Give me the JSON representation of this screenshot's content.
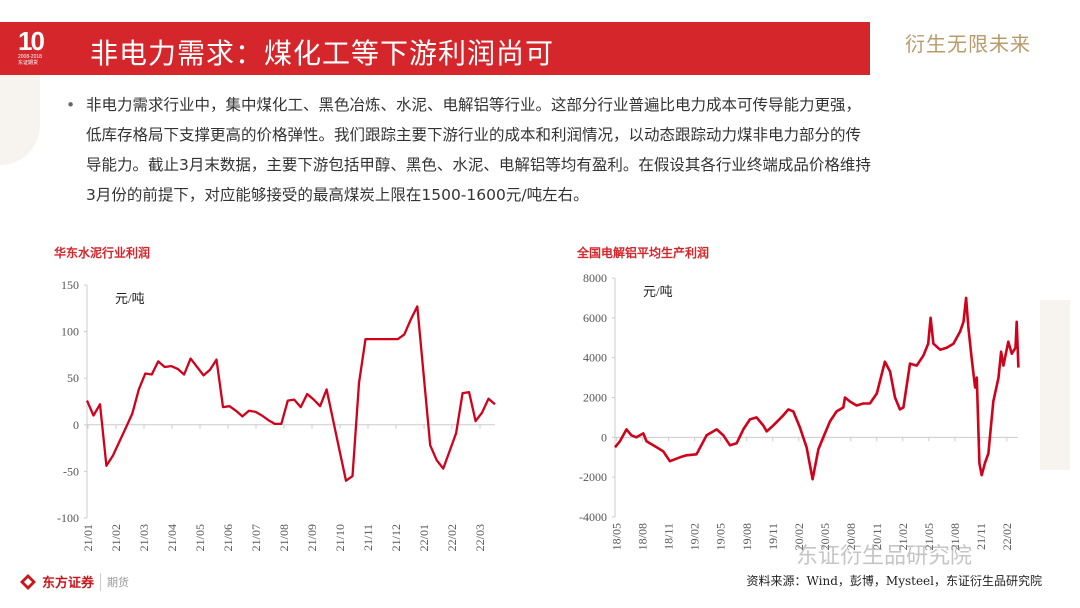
{
  "header": {
    "logo_text": "10",
    "logo_sub": "2008-2018 东证期货",
    "title": "非电力需求：煤化工等下游利润尚可",
    "slogan": "衍生无限未来"
  },
  "bullet": {
    "lines": [
      "非电力需求行业中，集中煤化工、黑色冶炼、水泥、电解铝等行业。这部分行业普遍比电力成本可传导能力更强，",
      "低库存格局下支撑更高的价格弹性。我们跟踪主要下游行业的成本和利润情况，以动态跟踪动力煤非电力部分的传",
      "导能力。截止3月末数据，主要下游包括甲醇、黑色、水泥、电解铝等均有盈利。在假设其各行业终端成品价格维持",
      "3月份的前提下，对应能够接受的最高煤炭上限在1500-1600元/吨左右。"
    ]
  },
  "chart_data": [
    {
      "type": "line",
      "title": "华东水泥行业利润",
      "unit_label": "元/吨",
      "ylim": [
        -100,
        150
      ],
      "yticks": [
        "-100",
        "-50",
        "0",
        "50",
        "100",
        "150"
      ],
      "xticks": [
        "21/01",
        "21/02",
        "21/03",
        "21/04",
        "21/05",
        "21/06",
        "21/07",
        "21/08",
        "21/09",
        "21/10",
        "21/11",
        "21/12",
        "22/01",
        "22/02",
        "22/03"
      ],
      "color": "#d0021b",
      "values": [
        26,
        10,
        22,
        -44,
        -33,
        -18,
        -3,
        12,
        38,
        55,
        54,
        68,
        62,
        63,
        60,
        54,
        71,
        62,
        53,
        59,
        70,
        19,
        20,
        15,
        9,
        15,
        14,
        10,
        5,
        1,
        1,
        26,
        27,
        19,
        33,
        27,
        20,
        38,
        5,
        -28,
        -60,
        -55,
        45,
        92,
        92,
        92,
        92,
        92,
        92,
        97,
        113,
        127,
        52,
        -22,
        -38,
        -47,
        -28,
        -9,
        34,
        35,
        4,
        13,
        28,
        22
      ]
    },
    {
      "type": "line",
      "title": "全国电解铝平均生产利润",
      "unit_label": "元/吨",
      "ylim": [
        -4000,
        8000
      ],
      "yticks": [
        "-4000",
        "-2000",
        "0",
        "2000",
        "4000",
        "6000",
        "8000"
      ],
      "xticks": [
        "18/05",
        "18/08",
        "18/11",
        "19/02",
        "19/05",
        "19/08",
        "19/11",
        "20/02",
        "20/05",
        "20/08",
        "20/11",
        "21/02",
        "21/05",
        "21/08",
        "21/11",
        "22/02"
      ],
      "color": "#d0021b",
      "points": [
        [
          "2018-04-25",
          -500
        ],
        [
          "2018-05-12",
          -200
        ],
        [
          "2018-06-05",
          400
        ],
        [
          "2018-06-22",
          100
        ],
        [
          "2018-07-09",
          0
        ],
        [
          "2018-08-03",
          200
        ],
        [
          "2018-08-14",
          -200
        ],
        [
          "2018-09-19",
          -500
        ],
        [
          "2018-10-12",
          -700
        ],
        [
          "2018-11-05",
          -1200
        ],
        [
          "2018-12-10",
          -1000
        ],
        [
          "2019-01-03",
          -900
        ],
        [
          "2019-02-07",
          -850
        ],
        [
          "2019-03-12",
          100
        ],
        [
          "2019-04-17",
          400
        ],
        [
          "2019-05-10",
          100
        ],
        [
          "2019-06-03",
          -400
        ],
        [
          "2019-06-26",
          -300
        ],
        [
          "2019-07-19",
          400
        ],
        [
          "2019-08-12",
          900
        ],
        [
          "2019-09-05",
          1000
        ],
        [
          "2019-09-28",
          600
        ],
        [
          "2019-10-10",
          300
        ],
        [
          "2019-11-03",
          600
        ],
        [
          "2019-12-07",
          1100
        ],
        [
          "2019-12-25",
          1400
        ],
        [
          "2020-01-12",
          1300
        ],
        [
          "2020-02-05",
          500
        ],
        [
          "2020-02-28",
          -500
        ],
        [
          "2020-03-19",
          -2100
        ],
        [
          "2020-04-09",
          -600
        ],
        [
          "2020-04-26",
          0
        ],
        [
          "2020-05-19",
          800
        ],
        [
          "2020-06-12",
          1300
        ],
        [
          "2020-07-05",
          1500
        ],
        [
          "2020-07-11",
          2000
        ],
        [
          "2020-07-28",
          1800
        ],
        [
          "2020-08-21",
          1600
        ],
        [
          "2020-09-14",
          1700
        ],
        [
          "2020-10-07",
          1700
        ],
        [
          "2020-11-01",
          2200
        ],
        [
          "2020-11-29",
          3800
        ],
        [
          "2020-12-17",
          3300
        ],
        [
          "2021-01-04",
          2000
        ],
        [
          "2021-01-21",
          1400
        ],
        [
          "2021-02-03",
          1500
        ],
        [
          "2021-02-26",
          3700
        ],
        [
          "2021-03-19",
          3600
        ],
        [
          "2021-04-12",
          4100
        ],
        [
          "2021-04-29",
          4700
        ],
        [
          "2021-05-07",
          6000
        ],
        [
          "2021-05-17",
          4700
        ],
        [
          "2021-06-10",
          4400
        ],
        [
          "2021-07-03",
          4500
        ],
        [
          "2021-07-26",
          4700
        ],
        [
          "2021-08-19",
          5300
        ],
        [
          "2021-09-01",
          5800
        ],
        [
          "2021-09-10",
          7000
        ],
        [
          "2021-09-18",
          5500
        ],
        [
          "2021-09-29",
          4000
        ],
        [
          "2021-10-11",
          2500
        ],
        [
          "2021-10-17",
          3000
        ],
        [
          "2021-10-26",
          -1300
        ],
        [
          "2021-11-04",
          -1900
        ],
        [
          "2021-11-15",
          -1300
        ],
        [
          "2021-11-27",
          -800
        ],
        [
          "2021-12-14",
          1800
        ],
        [
          "2022-01-02",
          3000
        ],
        [
          "2022-01-11",
          4300
        ],
        [
          "2022-01-19",
          3600
        ],
        [
          "2022-02-06",
          4800
        ],
        [
          "2022-02-18",
          4200
        ],
        [
          "2022-03-01",
          4500
        ],
        [
          "2022-03-05",
          5800
        ],
        [
          "2022-03-11",
          3500
        ]
      ]
    }
  ],
  "footer": {
    "company": "东方证券",
    "division": "期货",
    "source": "资料来源：Wind，彭博，Mysteel，东证衍生品研究院",
    "watermark": "东证衍生品研究院"
  },
  "colors": {
    "brand_red": "#d4262b",
    "slogan_gold": "#b99b6b",
    "line_red": "#d0021b"
  }
}
